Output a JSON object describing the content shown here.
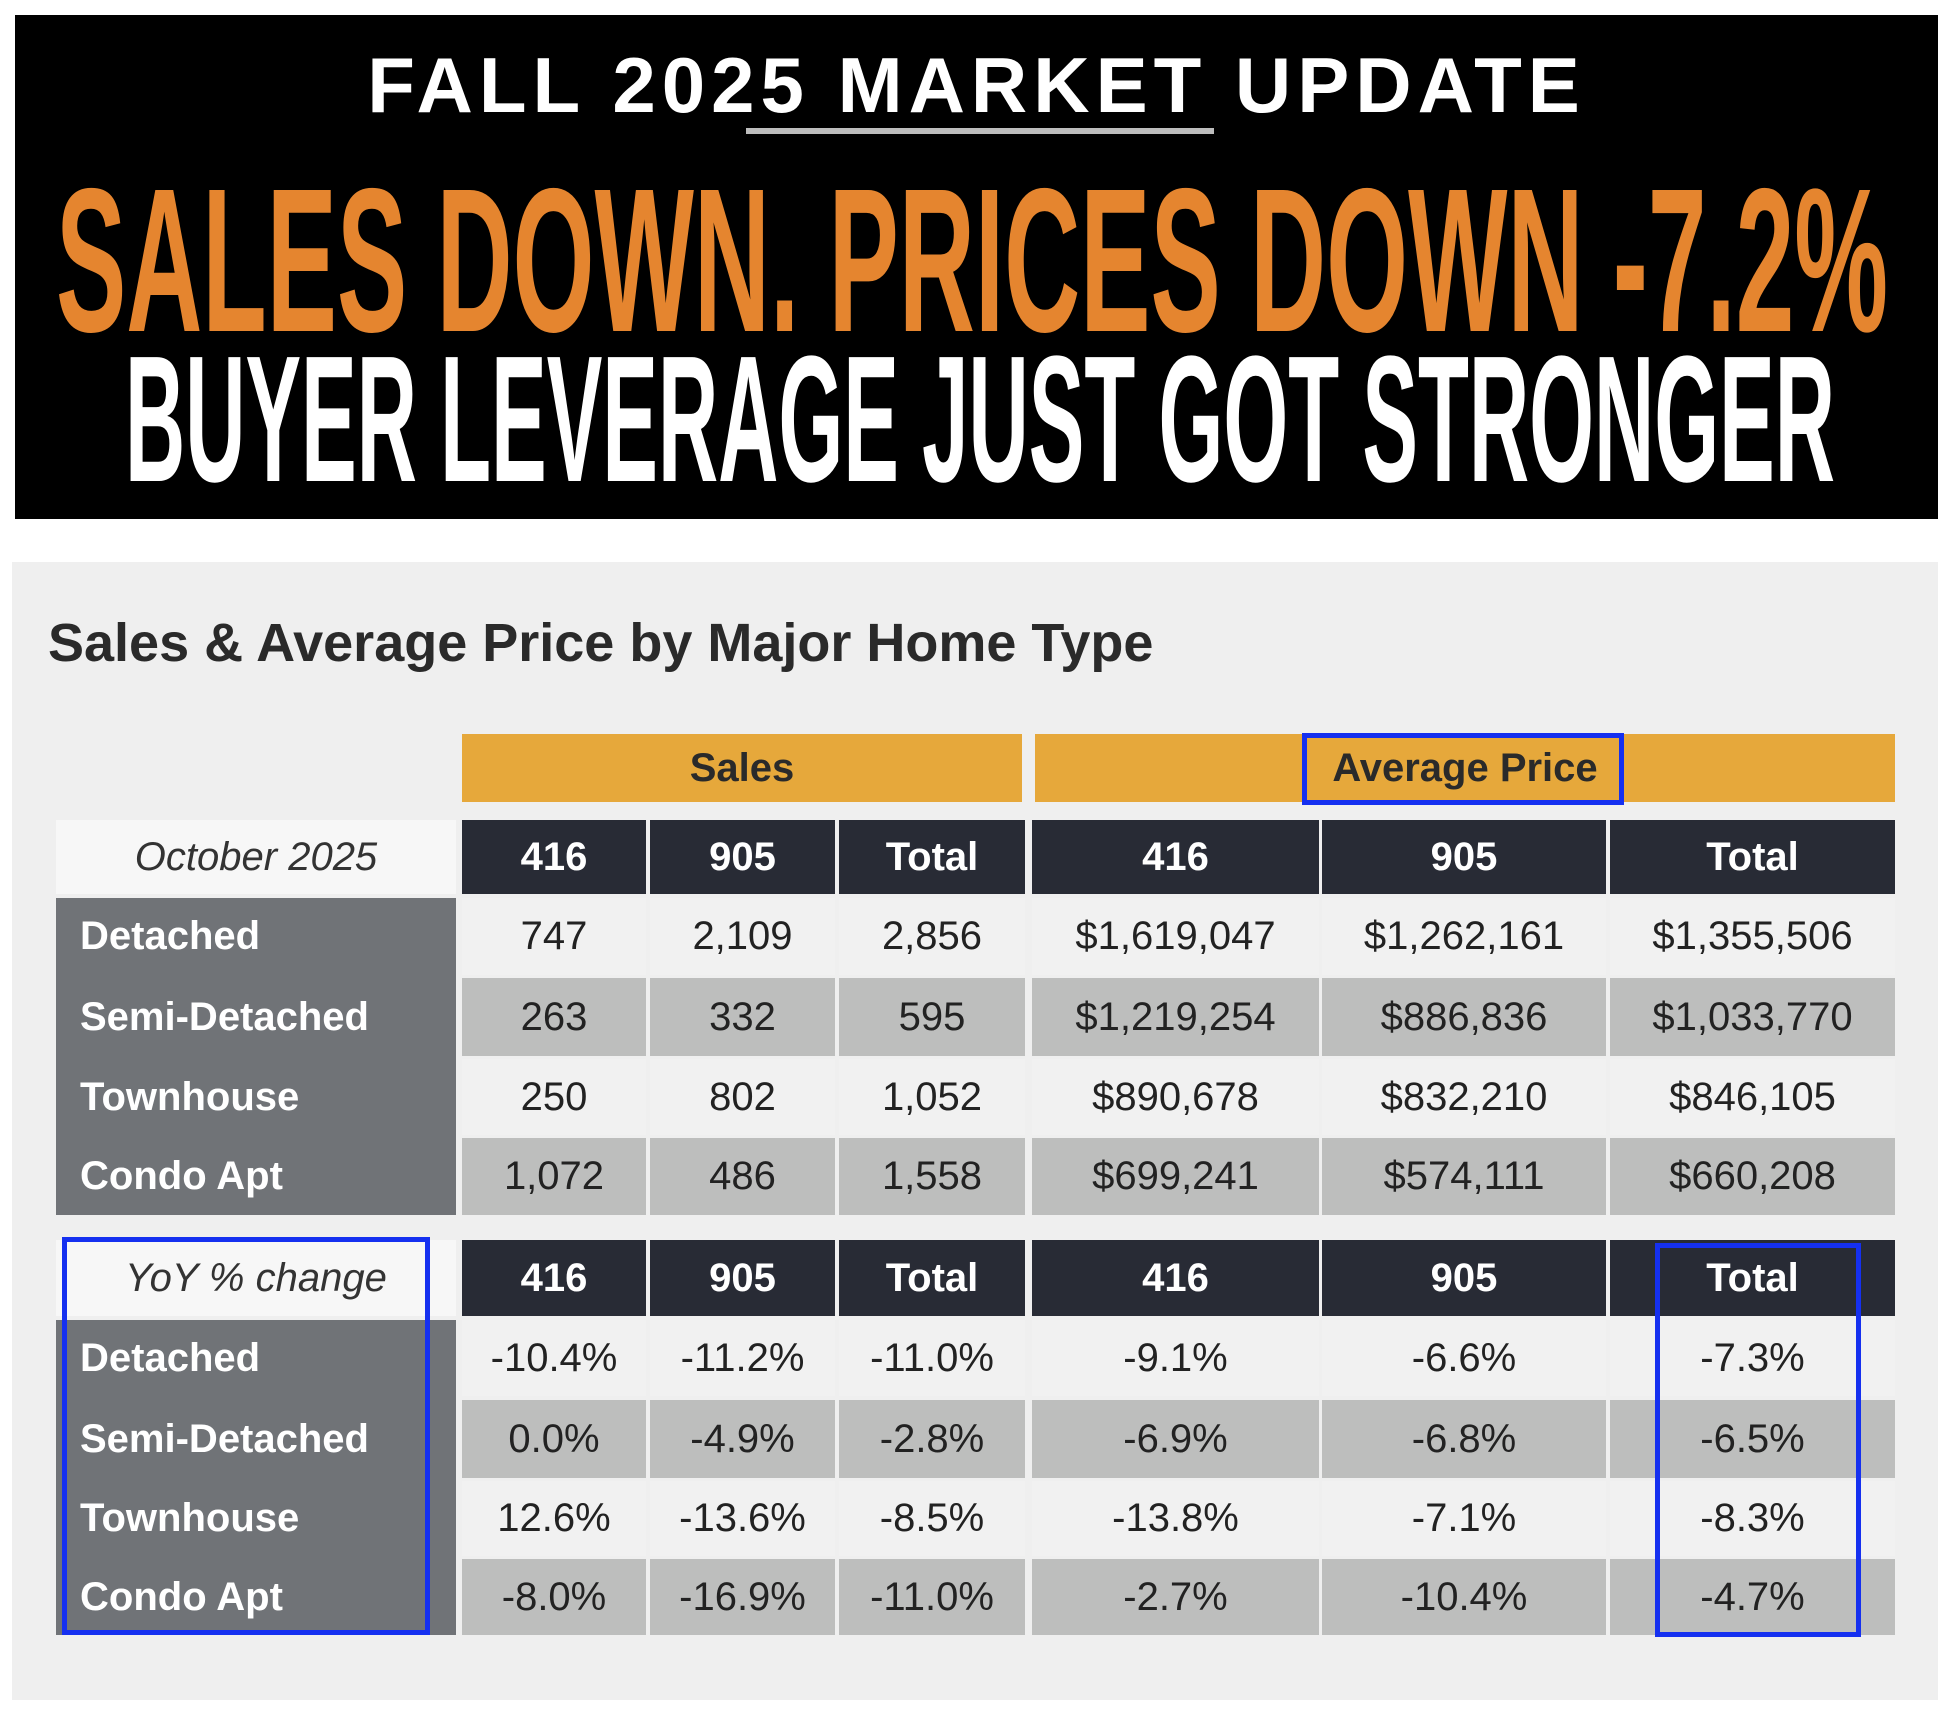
{
  "banner": {
    "kicker": "FALL 2025 MARKET UPDATE",
    "headline": "SALES DOWN. PRICES DOWN -7.2%",
    "subhead": "BUYER LEVERAGE JUST GOT STRONGER"
  },
  "table": {
    "title": "Sales & Average Price by Major Home Type",
    "groups": {
      "sales": "Sales",
      "price": "Average Price"
    },
    "columns": [
      "416",
      "905",
      "Total",
      "416",
      "905",
      "Total"
    ],
    "row_labels": [
      "Detached",
      "Semi-Detached",
      "Townhouse",
      "Condo Apt"
    ],
    "sections": [
      {
        "label": "October 2025",
        "rows": [
          [
            "747",
            "2,109",
            "2,856",
            "$1,619,047",
            "$1,262,161",
            "$1,355,506"
          ],
          [
            "263",
            "332",
            "595",
            "$1,219,254",
            "$886,836",
            "$1,033,770"
          ],
          [
            "250",
            "802",
            "1,052",
            "$890,678",
            "$832,210",
            "$846,105"
          ],
          [
            "1,072",
            "486",
            "1,558",
            "$699,241",
            "$574,111",
            "$660,208"
          ]
        ]
      },
      {
        "label": "YoY % change",
        "rows": [
          [
            "-10.4%",
            "-11.2%",
            "-11.0%",
            "-9.1%",
            "-6.6%",
            "-7.3%"
          ],
          [
            "0.0%",
            "-4.9%",
            "-2.8%",
            "-6.9%",
            "-6.8%",
            "-6.5%"
          ],
          [
            "12.6%",
            "-13.6%",
            "-8.5%",
            "-13.8%",
            "-7.1%",
            "-8.3%"
          ],
          [
            "-8.0%",
            "-16.9%",
            "-11.0%",
            "-2.7%",
            "-10.4%",
            "-4.7%"
          ]
        ]
      }
    ]
  },
  "colors": {
    "headline_orange": "#e5852f",
    "group_header": "#e6a83b",
    "column_header": "#282b35",
    "row_label": "#707377",
    "highlight_box": "#1530f0"
  }
}
